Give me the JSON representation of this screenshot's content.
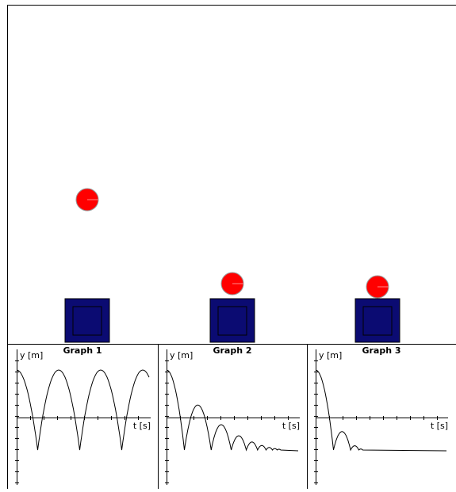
{
  "graphs": [
    {
      "title": "Graph 1",
      "y_label": "y [m]",
      "x_label": "t [s]"
    },
    {
      "title": "Graph 2",
      "y_label": "y [m]",
      "x_label": "t [s]"
    },
    {
      "title": "Graph 3",
      "y_label": "y [m]",
      "x_label": "t [s]"
    }
  ]
}
